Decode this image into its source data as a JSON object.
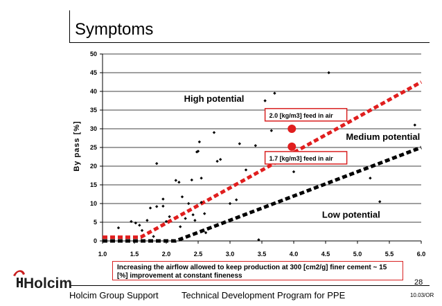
{
  "slide": {
    "title": "Symptoms",
    "page_number": "28",
    "footer_left": "Holcim Group Support",
    "footer_center": "Technical Development Program for PPE",
    "doc_code": "10.03/OR",
    "logo_text": "Holcim"
  },
  "note": "Increasing the airflow allowed to keep production at 300 [cm2/g] finer cement ~ 15 [%] improvement at constant fineness",
  "colors": {
    "red": "#e01e1e",
    "black": "#000000",
    "grid": "#000000",
    "note_border": "#d82020"
  },
  "chart_data": {
    "type": "scatter",
    "title": "",
    "xlabel": "",
    "ylabel": "By pass [%]",
    "xlim": [
      1.0,
      6.0
    ],
    "ylim": [
      0,
      50
    ],
    "x_ticks": [
      "1.0",
      "1.5",
      "2.0",
      "2.5",
      "3.0",
      "3.5",
      "4.0",
      "4.5",
      "5.0",
      "5.5",
      "6.0"
    ],
    "y_ticks": [
      "0",
      "5",
      "10",
      "15",
      "20",
      "25",
      "30",
      "35",
      "40",
      "45",
      "50"
    ],
    "grid": "horizontal",
    "points": [
      [
        1.25,
        3.5
      ],
      [
        1.45,
        5.2
      ],
      [
        1.52,
        4.8
      ],
      [
        1.58,
        4.2
      ],
      [
        1.62,
        2.8
      ],
      [
        1.7,
        5.5
      ],
      [
        1.75,
        8.8
      ],
      [
        1.8,
        1.2
      ],
      [
        1.85,
        9.2
      ],
      [
        1.85,
        20.7
      ],
      [
        1.95,
        11.2
      ],
      [
        1.95,
        9.3
      ],
      [
        2.0,
        5.2
      ],
      [
        2.05,
        6.5
      ],
      [
        2.15,
        16.2
      ],
      [
        2.2,
        15.7
      ],
      [
        2.22,
        3.8
      ],
      [
        2.25,
        11.8
      ],
      [
        2.3,
        6.0
      ],
      [
        2.35,
        10.0
      ],
      [
        2.4,
        16.3
      ],
      [
        2.42,
        7.0
      ],
      [
        2.45,
        5.5
      ],
      [
        2.48,
        23.8
      ],
      [
        2.5,
        24.0
      ],
      [
        2.52,
        26.5
      ],
      [
        2.55,
        16.8
      ],
      [
        2.55,
        10.3
      ],
      [
        2.6,
        7.3
      ],
      [
        2.62,
        2.2
      ],
      [
        2.75,
        29.0
      ],
      [
        2.8,
        21.3
      ],
      [
        2.85,
        21.8
      ],
      [
        3.0,
        10.0
      ],
      [
        3.1,
        11.0
      ],
      [
        3.15,
        26.0
      ],
      [
        3.25,
        19.0
      ],
      [
        3.4,
        25.5
      ],
      [
        3.45,
        0.3
      ],
      [
        3.55,
        37.5
      ],
      [
        3.65,
        29.5
      ],
      [
        3.7,
        39.5
      ],
      [
        4.0,
        18.5
      ],
      [
        4.55,
        45.0
      ],
      [
        5.2,
        16.8
      ],
      [
        5.35,
        10.5
      ],
      [
        5.9,
        31.0
      ]
    ],
    "lines": [
      {
        "name": "2.0 [kg/m3] feed in air",
        "color": "red",
        "points": [
          [
            1.0,
            1.0
          ],
          [
            1.6,
            1.0
          ],
          [
            6.0,
            42.5
          ]
        ]
      },
      {
        "name": "1.7 [kg/m3] feed in air",
        "color": "black",
        "points": [
          [
            1.0,
            0.0
          ],
          [
            2.15,
            0.0
          ],
          [
            6.0,
            25.0
          ]
        ]
      }
    ],
    "markers": [
      {
        "x": 3.97,
        "y": 30.0,
        "color": "red"
      },
      {
        "x": 3.97,
        "y": 25.2,
        "color": "red"
      }
    ],
    "annotations": [
      {
        "text": "2.0 [kg/m3] feed in air",
        "x": 3.55,
        "y": 33.0,
        "boxed": true
      },
      {
        "text": "1.7 [kg/m3] feed in air",
        "x": 3.55,
        "y": 21.5,
        "boxed": true
      },
      {
        "text": "High potential",
        "x": 2.75,
        "y": 37.2,
        "boxed": false
      },
      {
        "text": "Medium potential",
        "x": 5.4,
        "y": 27.0,
        "boxed": false
      },
      {
        "text": "Low potential",
        "x": 4.9,
        "y": 6.2,
        "boxed": false
      }
    ]
  }
}
